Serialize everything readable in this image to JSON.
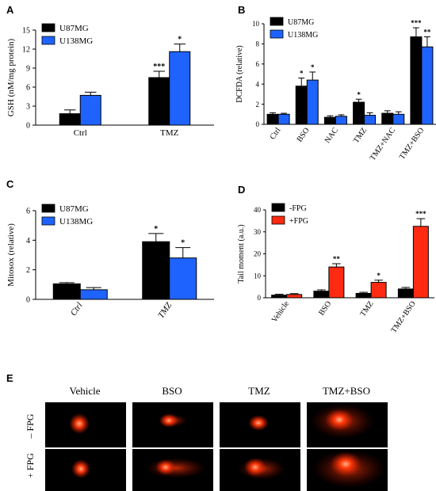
{
  "colors": {
    "black_bar": "#000000",
    "blue_bar": "#1f63ff",
    "red_bar": "#ff2a12",
    "comet_bg": "#000000",
    "comet_head": "#ff3a0a"
  },
  "panels": {
    "A": {
      "letter": "A"
    },
    "B": {
      "letter": "B"
    },
    "C": {
      "letter": "C"
    },
    "D": {
      "letter": "D"
    },
    "E": {
      "letter": "E"
    }
  },
  "chart_data": [
    {
      "panel": "A",
      "type": "bar",
      "ylabel": "GSH (nM/mg protein)",
      "ylim": [
        0,
        15
      ],
      "yticks": [
        0,
        3,
        6,
        9,
        12,
        15
      ],
      "categories": [
        "Ctrl",
        "TMZ"
      ],
      "series": [
        {
          "name": "U87MG",
          "color": "#000000",
          "values": [
            1.8,
            7.5
          ],
          "errors": [
            0.6,
            1.0
          ],
          "sig": [
            "",
            "***"
          ]
        },
        {
          "name": "U138MG",
          "color": "#1f63ff",
          "values": [
            4.7,
            11.6
          ],
          "errors": [
            0.5,
            1.2
          ],
          "sig": [
            "",
            "*"
          ]
        }
      ],
      "legend": "top-left",
      "xlabel_rotate": 0,
      "xlabel_italic": false
    },
    {
      "panel": "B",
      "type": "bar",
      "ylabel": "DCFDA (relative)",
      "ylim": [
        0,
        10
      ],
      "yticks": [
        0,
        2,
        4,
        6,
        8,
        10
      ],
      "categories": [
        "Ctrl",
        "BSO",
        "NAC",
        "TMZ",
        "TMZ+NAC",
        "TMZ+BSO"
      ],
      "series": [
        {
          "name": "U87MG",
          "color": "#000000",
          "values": [
            1.0,
            3.8,
            0.7,
            2.2,
            1.1,
            8.7
          ],
          "errors": [
            0.15,
            0.8,
            0.15,
            0.3,
            0.25,
            0.9
          ],
          "sig": [
            "",
            "*",
            "",
            "*",
            "",
            "***"
          ]
        },
        {
          "name": "U138MG",
          "color": "#1f63ff",
          "values": [
            1.0,
            4.4,
            0.8,
            0.9,
            1.0,
            7.7
          ],
          "errors": [
            0.1,
            0.8,
            0.15,
            0.25,
            0.25,
            1.0
          ],
          "sig": [
            "",
            "*",
            "",
            "",
            "",
            "**"
          ]
        }
      ],
      "legend": "top-left",
      "xlabel_rotate": -55,
      "xlabel_italic": false
    },
    {
      "panel": "C",
      "type": "bar",
      "ylabel": "Mitosox (relative)",
      "ylim": [
        0,
        6
      ],
      "yticks": [
        0,
        2,
        4,
        6
      ],
      "categories": [
        "Ctrl",
        "TMZ"
      ],
      "series": [
        {
          "name": "U87MG",
          "color": "#000000",
          "values": [
            1.05,
            3.9
          ],
          "errors": [
            0.08,
            0.55
          ],
          "sig": [
            "",
            "*"
          ]
        },
        {
          "name": "U138MG",
          "color": "#1f63ff",
          "values": [
            0.65,
            2.8
          ],
          "errors": [
            0.15,
            0.7
          ],
          "sig": [
            "",
            "*"
          ]
        }
      ],
      "legend": "top-left",
      "xlabel_rotate": -55,
      "xlabel_italic": true
    },
    {
      "panel": "D",
      "type": "bar",
      "ylabel": "Tail moment (a.u.)",
      "ylim": [
        0,
        40
      ],
      "yticks": [
        0,
        10,
        20,
        30,
        40
      ],
      "categories": [
        "Vehicle",
        "BSO",
        "TMZ",
        "TMZ+BSO"
      ],
      "series": [
        {
          "name": "-FPG",
          "color": "#000000",
          "values": [
            1.2,
            3.0,
            2.0,
            4.0
          ],
          "errors": [
            0.4,
            0.6,
            0.5,
            0.7
          ],
          "sig": [
            "",
            "",
            "",
            ""
          ]
        },
        {
          "name": "+FPG",
          "color": "#ff2a12",
          "values": [
            1.5,
            14.0,
            7.0,
            32.5
          ],
          "errors": [
            0.4,
            1.5,
            1.0,
            3.5
          ],
          "sig": [
            "",
            "**",
            "*",
            "***"
          ]
        }
      ],
      "legend": "top-left",
      "xlabel_rotate": -55,
      "xlabel_italic": false
    }
  ],
  "comet": {
    "columns": [
      "Vehicle",
      "BSO",
      "TMZ",
      "TMZ+BSO"
    ],
    "rows": [
      "– FPG",
      "+ FPG"
    ]
  }
}
